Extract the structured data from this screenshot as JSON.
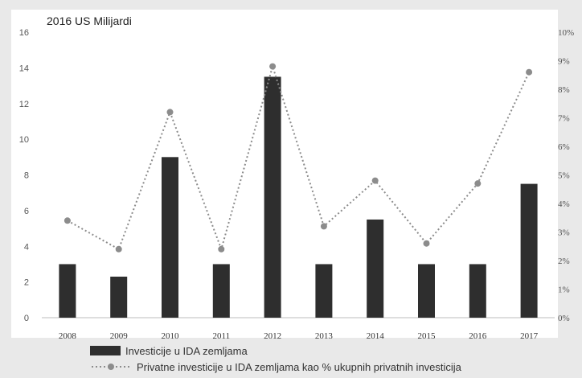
{
  "colors": {
    "background": "#e9e9e9",
    "plot_background": "#ffffff",
    "bar": "#2e2e2e",
    "line": "#8c8c8c",
    "tick_text": "#555555",
    "title_text": "#222222"
  },
  "chart_data": {
    "type": "bar",
    "title": "2016 US Milijardi",
    "categories": [
      "2008",
      "2009",
      "2010",
      "2011",
      "2012",
      "2013",
      "2014",
      "2015",
      "2016",
      "2017"
    ],
    "ylim": [
      0,
      16
    ],
    "y_ticks": [
      "0",
      "2",
      "4",
      "6",
      "8",
      "10",
      "12",
      "14",
      "16"
    ],
    "y2lim": [
      0,
      10
    ],
    "y2_ticks": [
      "0%",
      "1%",
      "2%",
      "3%",
      "4%",
      "5%",
      "6%",
      "7%",
      "8%",
      "9%",
      "10%"
    ],
    "grid": false,
    "legend_position": "bottom-left",
    "series": [
      {
        "name": "Investicije u IDA zemljama",
        "type": "bar",
        "axis": "left",
        "values": [
          3.0,
          2.3,
          9.0,
          3.0,
          13.5,
          3.0,
          5.5,
          3.0,
          3.0,
          7.5
        ]
      },
      {
        "name": "Privatne investicije u IDA zemljama kao % ukupnih privatnih investicija",
        "type": "line",
        "style": "dotted-with-markers",
        "axis": "right",
        "values": [
          3.4,
          2.4,
          7.2,
          2.4,
          8.8,
          3.2,
          4.8,
          2.6,
          4.7,
          8.6
        ]
      }
    ]
  }
}
